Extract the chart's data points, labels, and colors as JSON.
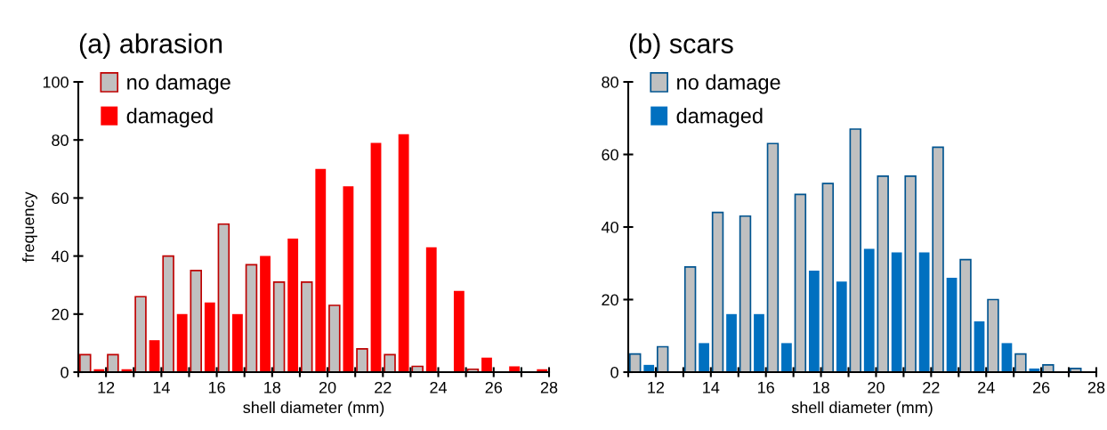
{
  "chart_data": [
    {
      "type": "bar",
      "title": "(a) abrasion",
      "xlabel": "shell diameter (mm)",
      "ylabel": "frequency",
      "xlim": [
        11,
        28
      ],
      "ylim": [
        0,
        100
      ],
      "xticks": [
        {
          "value": 11,
          "label": null
        },
        12,
        {
          "value": 13,
          "label": null
        },
        14,
        {
          "value": 15,
          "label": null
        },
        16,
        {
          "value": 17,
          "label": null
        },
        18,
        {
          "value": 19,
          "label": null
        },
        20,
        {
          "value": 21,
          "label": null
        },
        22,
        {
          "value": 23,
          "label": null
        },
        24,
        {
          "value": 25,
          "label": null
        },
        26,
        {
          "value": 27,
          "label": null
        },
        28
      ],
      "yticks": [
        0,
        20,
        40,
        60,
        80,
        100
      ],
      "grid": false,
      "legend": "top left",
      "series": [
        {
          "name": "no damage",
          "color": "#c0c0c0",
          "x": [
            11.25,
            12.25,
            13.25,
            14.25,
            15.25,
            16.25,
            17.25,
            18.25,
            19.25,
            20.25,
            21.25,
            22.25,
            23.25,
            24.25,
            25.25,
            26.25,
            27.25
          ],
          "values": [
            6,
            6,
            26,
            40,
            35,
            51,
            37,
            31,
            31,
            23,
            8,
            6,
            2,
            0,
            1,
            0,
            0
          ]
        },
        {
          "name": "damaged",
          "color": "#ff0000",
          "x": [
            11.75,
            12.75,
            13.75,
            14.75,
            15.75,
            16.75,
            17.75,
            18.75,
            19.75,
            20.75,
            21.75,
            22.75,
            23.75,
            24.75,
            25.75,
            26.75,
            27.75
          ],
          "values": [
            1,
            1,
            11,
            20,
            24,
            20,
            40,
            46,
            70,
            64,
            79,
            82,
            43,
            28,
            5,
            2,
            1
          ]
        }
      ]
    },
    {
      "type": "bar",
      "title": "(b) scars",
      "xlabel": "shell diameter (mm)",
      "xlim": [
        11,
        28
      ],
      "ylim": [
        0,
        80
      ],
      "xticks": [
        {
          "value": 11,
          "label": null
        },
        12,
        {
          "value": 13,
          "label": null
        },
        14,
        {
          "value": 15,
          "label": null
        },
        16,
        {
          "value": 17,
          "label": null
        },
        18,
        {
          "value": 19,
          "label": null
        },
        20,
        {
          "value": 21,
          "label": null
        },
        22,
        {
          "value": 23,
          "label": null
        },
        24,
        {
          "value": 25,
          "label": null
        },
        26,
        {
          "value": 27,
          "label": null
        },
        28
      ],
      "yticks": [
        0,
        20,
        40,
        60,
        80
      ],
      "grid": false,
      "legend": "top left",
      "series": [
        {
          "name": "no damage",
          "color": "#c0c0c0",
          "x": [
            11.25,
            12.25,
            13.25,
            14.25,
            15.25,
            16.25,
            17.25,
            18.25,
            19.25,
            20.25,
            21.25,
            22.25,
            23.25,
            24.25,
            25.25,
            26.25,
            27.25
          ],
          "values": [
            5,
            7,
            29,
            44,
            43,
            63,
            49,
            52,
            67,
            54,
            54,
            62,
            31,
            20,
            5,
            2,
            1
          ]
        },
        {
          "name": "damaged",
          "color": "#0070c0",
          "x": [
            11.75,
            12.75,
            13.75,
            14.75,
            15.75,
            16.75,
            17.75,
            18.75,
            19.75,
            20.75,
            21.75,
            22.75,
            23.75,
            24.75,
            25.75,
            26.75,
            27.75
          ],
          "values": [
            2,
            0,
            8,
            16,
            16,
            8,
            28,
            25,
            34,
            33,
            33,
            26,
            14,
            8,
            1,
            0,
            0
          ]
        }
      ]
    }
  ]
}
